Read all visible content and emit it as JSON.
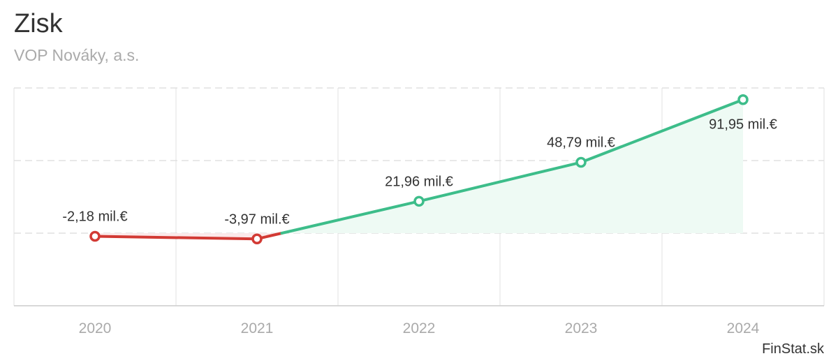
{
  "header": {
    "title": "Zisk",
    "subtitle": "VOP Nováky, a.s."
  },
  "credit": "FinStat.sk",
  "colors": {
    "positive": "#3dbd8a",
    "negative": "#d23a34",
    "positive_fill": "#eefaf4",
    "negative_fill": "#fbe9ea",
    "grid": "#e0e0e0",
    "axis": "#cccccc"
  },
  "chart_data": {
    "type": "line",
    "title": "Zisk",
    "subtitle": "VOP Nováky, a.s.",
    "categories": [
      "2020",
      "2021",
      "2022",
      "2023",
      "2024"
    ],
    "values": [
      -2.18,
      -3.97,
      21.96,
      48.79,
      91.95
    ],
    "labels": [
      "-2,18 mil.€",
      "-3,97 mil.€",
      "21,96 mil.€",
      "48,79 mil.€",
      "91,95 mil.€"
    ],
    "unit": "mil.€",
    "ylim": [
      -50,
      100
    ],
    "yticks": [
      -50,
      0,
      50,
      100
    ],
    "grid": true
  }
}
